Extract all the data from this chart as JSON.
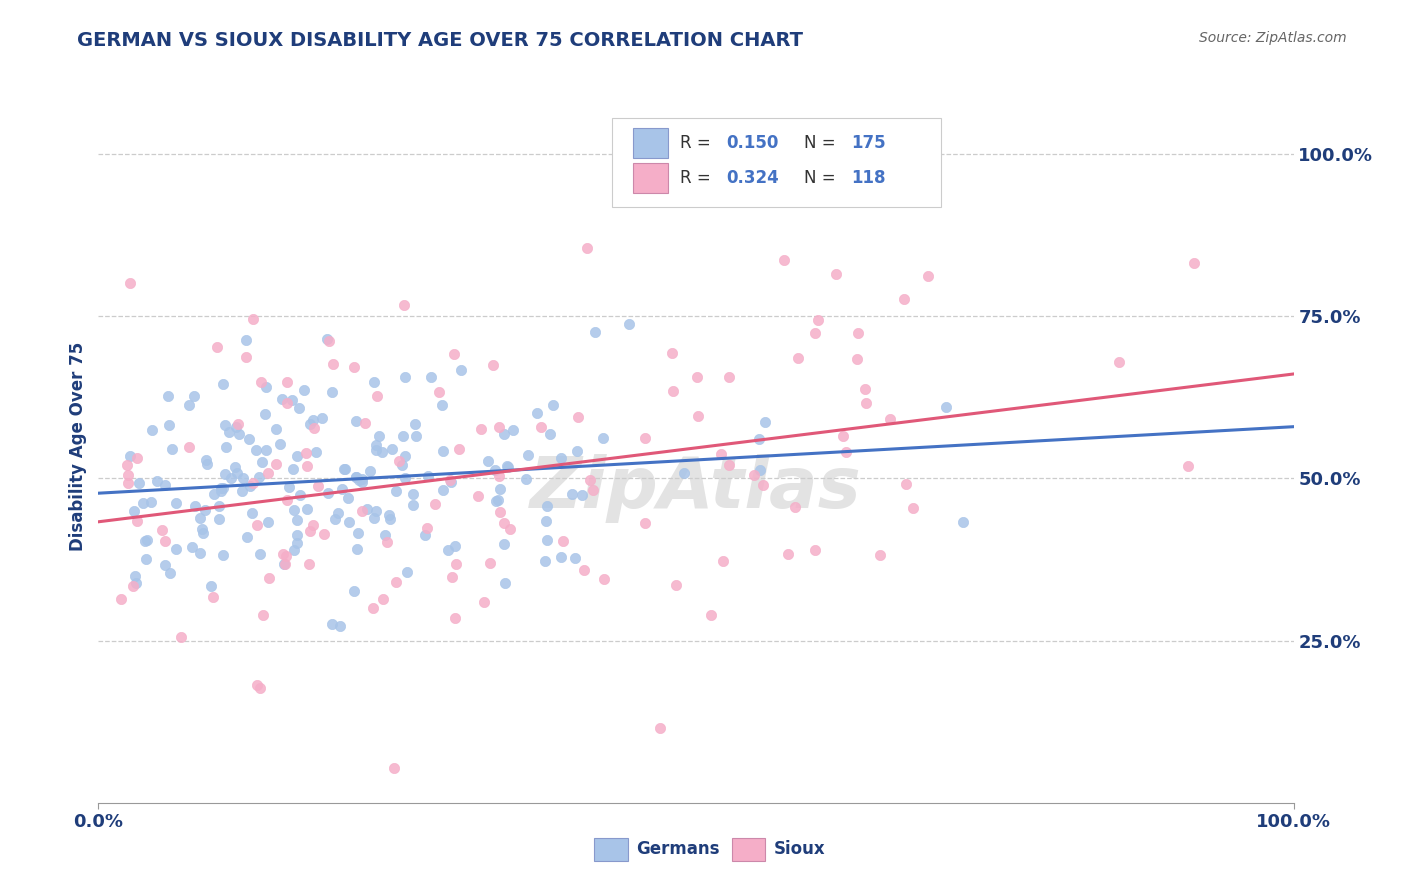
{
  "title": "GERMAN VS SIOUX DISABILITY AGE OVER 75 CORRELATION CHART",
  "source": "Source: ZipAtlas.com",
  "ylabel": "Disability Age Over 75",
  "ytick_labels": [
    "25.0%",
    "50.0%",
    "75.0%",
    "100.0%"
  ],
  "ytick_values": [
    0.25,
    0.5,
    0.75,
    1.0
  ],
  "xtick_labels": [
    "0.0%",
    "100.0%"
  ],
  "xtick_values": [
    0.0,
    1.0
  ],
  "legend_labels": [
    "Germans",
    "Sioux"
  ],
  "legend_r": [
    0.15,
    0.324
  ],
  "legend_n": [
    175,
    118
  ],
  "blue_color": "#a8c4e8",
  "pink_color": "#f5aec8",
  "blue_line_color": "#4472c4",
  "pink_line_color": "#e05878",
  "title_color": "#1f3d7a",
  "axis_label_color": "#1f3d7a",
  "tick_color": "#1f3d7a",
  "watermark": "ZipAtlas",
  "background_color": "#ffffff",
  "grid_color": "#cccccc",
  "ylim_min": 0.0,
  "ylim_max": 1.1,
  "xlim_min": 0.0,
  "xlim_max": 1.0
}
